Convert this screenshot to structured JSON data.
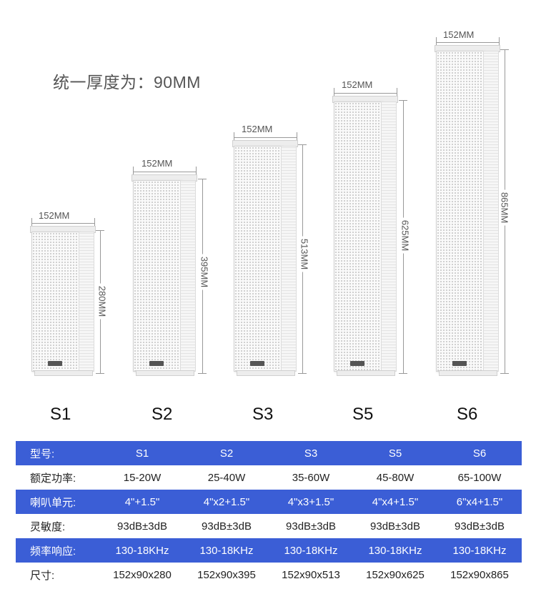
{
  "header": {
    "thickness_note": "统一厚度为：90MM"
  },
  "speakers": [
    {
      "model": "S1",
      "width_label": "152MM",
      "height_label": "280MM"
    },
    {
      "model": "S2",
      "width_label": "152MM",
      "height_label": "395MM"
    },
    {
      "model": "S3",
      "width_label": "152MM",
      "height_label": "513MM"
    },
    {
      "model": "S5",
      "width_label": "152MM",
      "height_label": "625MM"
    },
    {
      "model": "S6",
      "width_label": "152MM",
      "height_label": "865MM"
    }
  ],
  "spec_table": {
    "rows": [
      {
        "label": "型号:",
        "values": [
          "S1",
          "S2",
          "S3",
          "S5",
          "S6"
        ]
      },
      {
        "label": "额定功率:",
        "values": [
          "15-20W",
          "25-40W",
          "35-60W",
          "45-80W",
          "65-100W"
        ]
      },
      {
        "label": "喇叭单元:",
        "values": [
          "4\"+1.5\"",
          "4\"x2+1.5\"",
          "4\"x3+1.5\"",
          "4\"x4+1.5\"",
          "6\"x4+1.5\""
        ]
      },
      {
        "label": "灵敏度:",
        "values": [
          "93dB±3dB",
          "93dB±3dB",
          "93dB±3dB",
          "93dB±3dB",
          "93dB±3dB"
        ]
      },
      {
        "label": "频率响应:",
        "values": [
          "130-18KHz",
          "130-18KHz",
          "130-18KHz",
          "130-18KHz",
          "130-18KHz"
        ]
      },
      {
        "label": "尺寸:",
        "values": [
          "152x90x280",
          "152x90x395",
          "152x90x513",
          "152x90x625",
          "152x90x865"
        ]
      }
    ]
  },
  "colors": {
    "table_blue": "#3b5ed6",
    "row_white": "#ffffff"
  }
}
